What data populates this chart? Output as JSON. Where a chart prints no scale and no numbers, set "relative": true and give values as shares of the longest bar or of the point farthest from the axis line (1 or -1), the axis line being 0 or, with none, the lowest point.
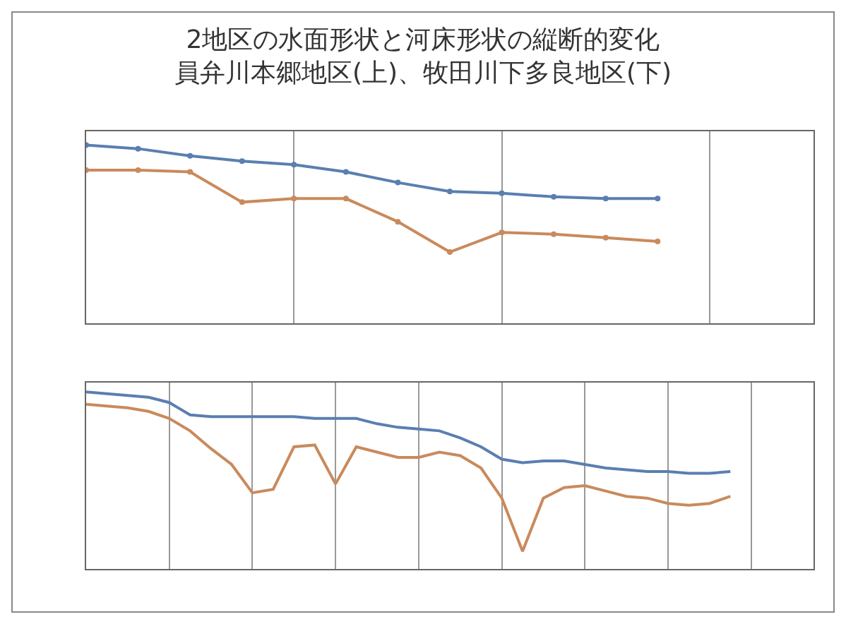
{
  "chart_data": [
    {
      "type": "line",
      "title": "2地区の水面形状と河床形状の縦断的変化",
      "subtitle": "員弁川本郷地区(上)、牧田川下多良地区(下)",
      "relative": true,
      "grid": "x",
      "marker": "circle",
      "line_style": "solid",
      "categories": [
        null,
        null,
        null,
        null,
        null,
        null,
        null,
        null,
        null,
        null,
        null,
        null,
        null,
        null,
        null
      ],
      "series": [
        {
          "color": "#5a7fb0",
          "values": [
            1,
            0.98,
            0.94,
            0.91,
            0.89,
            0.85,
            0.79,
            0.74,
            0.73,
            0.71,
            0.7,
            0.7,
            null,
            null,
            null
          ]
        },
        {
          "color": "#c98a5c",
          "values": [
            0.86,
            0.86,
            0.85,
            0.68,
            0.7,
            0.7,
            0.57,
            0.4,
            0.51,
            0.5,
            0.48,
            0.46,
            null,
            null,
            null
          ]
        }
      ]
    },
    {
      "type": "line",
      "relative": true,
      "grid": "x",
      "marker": "none",
      "line_style": "solid",
      "categories": [
        null,
        null,
        null,
        null,
        null,
        null,
        null,
        null,
        null,
        null,
        null,
        null,
        null,
        null,
        null,
        null,
        null,
        null,
        null,
        null,
        null,
        null,
        null,
        null,
        null,
        null,
        null,
        null,
        null,
        null,
        null,
        null,
        null,
        null,
        null,
        null
      ],
      "series": [
        {
          "color": "#5a7fb0",
          "values": [
            1,
            0.99,
            0.98,
            0.97,
            0.94,
            0.87,
            0.86,
            0.86,
            0.86,
            0.86,
            0.86,
            0.85,
            0.85,
            0.85,
            0.82,
            0.8,
            0.79,
            0.78,
            0.74,
            0.69,
            0.62,
            0.6,
            0.61,
            0.61,
            0.59,
            0.57,
            0.56,
            0.55,
            0.55,
            0.54,
            0.54,
            0.55,
            null,
            null,
            null,
            null
          ]
        },
        {
          "color": "#c98a5c",
          "values": [
            0.93,
            0.92,
            0.91,
            0.89,
            0.85,
            0.78,
            0.68,
            0.59,
            0.43,
            0.45,
            0.69,
            0.7,
            0.48,
            0.69,
            0.66,
            0.63,
            0.63,
            0.66,
            0.64,
            0.57,
            0.4,
            0.1,
            0.4,
            0.46,
            0.47,
            0.44,
            0.41,
            0.4,
            0.37,
            0.36,
            0.37,
            0.41,
            null,
            null,
            null,
            null
          ]
        }
      ]
    }
  ]
}
